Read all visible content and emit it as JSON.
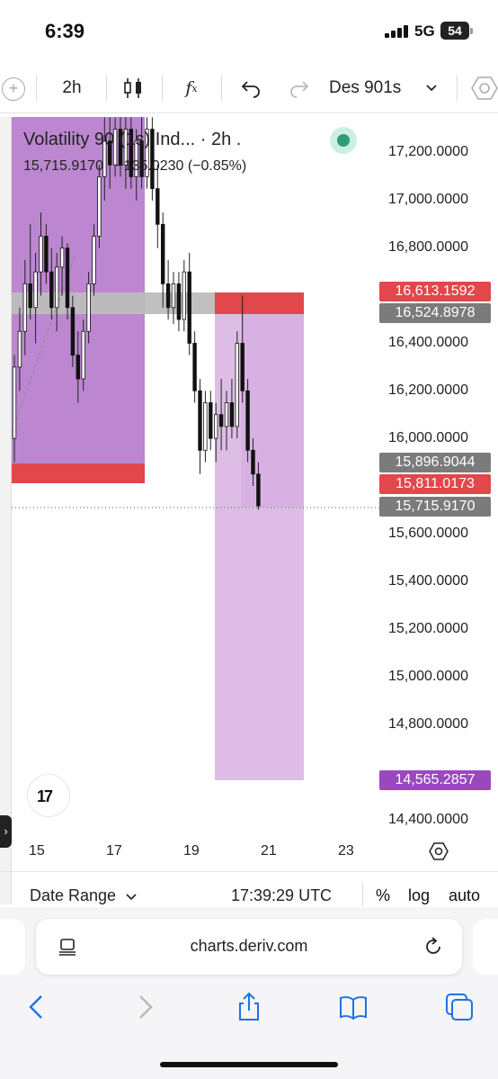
{
  "status_bar": {
    "time": "6:39",
    "network": "5G",
    "battery": "54"
  },
  "toolbar": {
    "interval": "2h",
    "drawing_label": "Des 901s",
    "icons": [
      "add-circle-icon",
      "candlestick-icon",
      "function-icon",
      "undo-icon",
      "redo-icon",
      "chevron-down-icon",
      "settings-hex-icon"
    ]
  },
  "legend": {
    "title": "Volatility 90 (1s) Ind... · 2h .",
    "price": "15,715.9170",
    "change": "−135.0230",
    "change_pct": "(−0.85%)"
  },
  "y_axis": {
    "labels": [
      "17,200.0000",
      "17,000.0000",
      "16,800.0000",
      "16,400.0000",
      "16,200.0000",
      "16,000.0000",
      "15,600.0000",
      "15,400.0000",
      "15,200.0000",
      "15,000.0000",
      "14,800.0000",
      "14,400.0000"
    ]
  },
  "price_tags": [
    {
      "value": "16,613.1592",
      "color": "#e2474b"
    },
    {
      "value": "16,524.8978",
      "color": "#7b7b7b"
    },
    {
      "value": "15,896.9044",
      "color": "#7b7b7b"
    },
    {
      "value": "15,811.0173",
      "color": "#e2474b"
    },
    {
      "value": "15,715.9170",
      "color": "#7b7b7b"
    },
    {
      "value": "14,565.2857",
      "color": "#9b48bf"
    }
  ],
  "x_axis": {
    "labels": [
      "15",
      "17",
      "19",
      "21",
      "23"
    ]
  },
  "bottom_bar": {
    "date_range": "Date Range",
    "clock": "17:39:29 UTC",
    "percent": "%",
    "log": "log",
    "auto": "auto"
  },
  "browser": {
    "url": "charts.deriv.com"
  },
  "colors": {
    "accent_red": "#e2474b",
    "zone_purple": "#b57acb",
    "zone_light_purple": "#d9b6e2",
    "zone_gray": "#bdbdbd",
    "live_green": "#2e9b78"
  },
  "chart_data": {
    "type": "candlestick",
    "title": "Volatility 90 (1s) Ind... · 2h .",
    "x_tick_labels": [
      "15",
      "17",
      "19",
      "21",
      "23"
    ],
    "y_tick_labels": [
      17200,
      17000,
      16800,
      16400,
      16200,
      16000,
      15600,
      15400,
      15200,
      15000,
      14800,
      14400
    ],
    "ylim": [
      14300,
      17350
    ],
    "last_price": 15715.917,
    "levels": [
      16613.1592,
      16524.8978,
      15896.9044,
      15811.0173,
      15715.917,
      14565.2857
    ],
    "candles": [
      {
        "o": 16000,
        "h": 16350,
        "l": 15900,
        "c": 16300
      },
      {
        "o": 16300,
        "h": 16550,
        "l": 16200,
        "c": 16450
      },
      {
        "o": 16450,
        "h": 16750,
        "l": 16350,
        "c": 16650
      },
      {
        "o": 16650,
        "h": 16900,
        "l": 16500,
        "c": 16550
      },
      {
        "o": 16550,
        "h": 16780,
        "l": 16400,
        "c": 16700
      },
      {
        "o": 16700,
        "h": 16950,
        "l": 16600,
        "c": 16850
      },
      {
        "o": 16850,
        "h": 16900,
        "l": 16650,
        "c": 16700
      },
      {
        "o": 16700,
        "h": 16800,
        "l": 16500,
        "c": 16550
      },
      {
        "o": 16550,
        "h": 16780,
        "l": 16450,
        "c": 16720
      },
      {
        "o": 16720,
        "h": 16850,
        "l": 16600,
        "c": 16800
      },
      {
        "o": 16800,
        "h": 16820,
        "l": 16500,
        "c": 16550
      },
      {
        "o": 16550,
        "h": 16600,
        "l": 16300,
        "c": 16350
      },
      {
        "o": 16350,
        "h": 16450,
        "l": 16150,
        "c": 16250
      },
      {
        "o": 16250,
        "h": 16500,
        "l": 16200,
        "c": 16450
      },
      {
        "o": 16450,
        "h": 16700,
        "l": 16400,
        "c": 16650
      },
      {
        "o": 16650,
        "h": 16900,
        "l": 16600,
        "c": 16850
      },
      {
        "o": 16850,
        "h": 17150,
        "l": 16800,
        "c": 17100
      },
      {
        "o": 17100,
        "h": 17350,
        "l": 17000,
        "c": 17250
      },
      {
        "o": 17250,
        "h": 17350,
        "l": 17050,
        "c": 17150
      },
      {
        "o": 17150,
        "h": 17350,
        "l": 17100,
        "c": 17300
      },
      {
        "o": 17300,
        "h": 17350,
        "l": 17100,
        "c": 17150
      },
      {
        "o": 17150,
        "h": 17350,
        "l": 17050,
        "c": 17300
      },
      {
        "o": 17300,
        "h": 17350,
        "l": 17050,
        "c": 17100
      },
      {
        "o": 17100,
        "h": 17300,
        "l": 17000,
        "c": 17250
      },
      {
        "o": 17250,
        "h": 17350,
        "l": 17050,
        "c": 17100
      },
      {
        "o": 17100,
        "h": 17350,
        "l": 17050,
        "c": 17300
      },
      {
        "o": 17300,
        "h": 17350,
        "l": 17000,
        "c": 17050
      },
      {
        "o": 17050,
        "h": 17150,
        "l": 16800,
        "c": 16900
      },
      {
        "o": 16900,
        "h": 16950,
        "l": 16550,
        "c": 16650
      },
      {
        "o": 16650,
        "h": 16750,
        "l": 16500,
        "c": 16550
      },
      {
        "o": 16550,
        "h": 16700,
        "l": 16480,
        "c": 16650
      },
      {
        "o": 16650,
        "h": 16700,
        "l": 16450,
        "c": 16500
      },
      {
        "o": 16500,
        "h": 16750,
        "l": 16450,
        "c": 16700
      },
      {
        "o": 16700,
        "h": 16780,
        "l": 16350,
        "c": 16400
      },
      {
        "o": 16400,
        "h": 16450,
        "l": 16150,
        "c": 16200
      },
      {
        "o": 16200,
        "h": 16250,
        "l": 15850,
        "c": 15950
      },
      {
        "o": 15950,
        "h": 16200,
        "l": 15900,
        "c": 16150
      },
      {
        "o": 16150,
        "h": 16200,
        "l": 15950,
        "c": 16000
      },
      {
        "o": 16000,
        "h": 16150,
        "l": 15900,
        "c": 16100
      },
      {
        "o": 16100,
        "h": 16250,
        "l": 15950,
        "c": 16050
      },
      {
        "o": 16050,
        "h": 16200,
        "l": 15950,
        "c": 16150
      },
      {
        "o": 16150,
        "h": 16250,
        "l": 16000,
        "c": 16050
      },
      {
        "o": 16050,
        "h": 16450,
        "l": 16000,
        "c": 16400
      },
      {
        "o": 16400,
        "h": 16600,
        "l": 16150,
        "c": 16200
      },
      {
        "o": 16200,
        "h": 16250,
        "l": 15900,
        "c": 15950
      },
      {
        "o": 15950,
        "h": 16000,
        "l": 15800,
        "c": 15850
      },
      {
        "o": 15850,
        "h": 15900,
        "l": 15700,
        "c": 15716
      }
    ]
  }
}
